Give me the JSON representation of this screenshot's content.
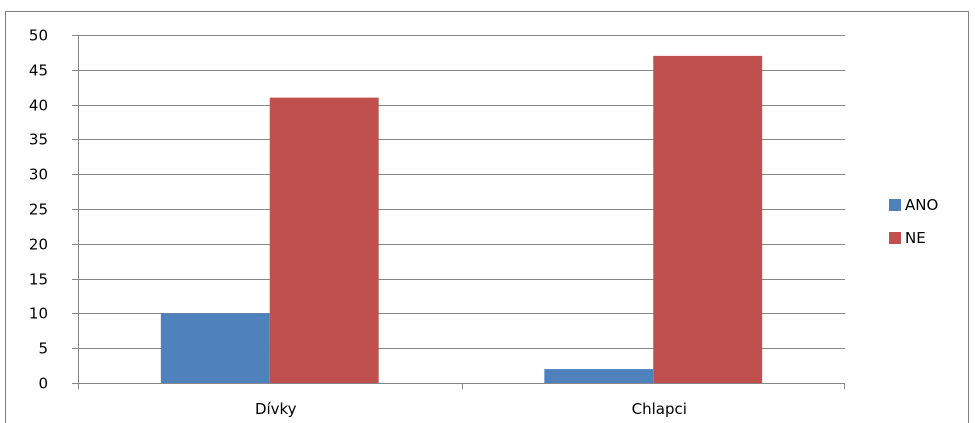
{
  "chart_data": {
    "type": "bar",
    "categories": [
      "Dívky",
      "Chlapci"
    ],
    "series": [
      {
        "name": "ANO",
        "values": [
          10,
          2
        ],
        "color": "#4F81BD"
      },
      {
        "name": "NE",
        "values": [
          41,
          47
        ],
        "color": "#C0504D"
      }
    ],
    "ylim": [
      0,
      50
    ],
    "yticks": [
      0,
      5,
      10,
      15,
      20,
      25,
      30,
      35,
      40,
      45,
      50
    ],
    "grid": true,
    "legend": "right",
    "title": "",
    "xlabel": "",
    "ylabel": ""
  }
}
